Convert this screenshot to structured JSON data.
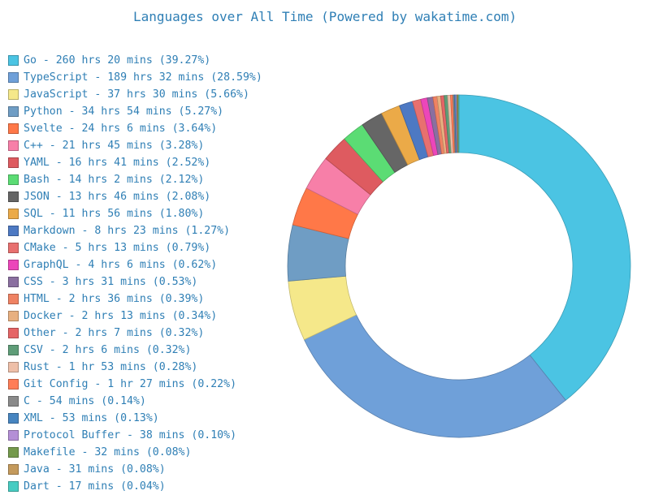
{
  "chart_data": {
    "type": "pie",
    "title": "Languages over All Time (Powered by wakatime.com)",
    "legend_placement": "left",
    "slices": [
      {
        "label": "Go - 260 hrs 20 mins (39.27%)",
        "value": 39.27,
        "color": "#4bc4e3"
      },
      {
        "label": "TypeScript - 189 hrs 32 mins (28.59%)",
        "value": 28.59,
        "color": "#6fa0d9"
      },
      {
        "label": "JavaScript - 37 hrs 30 mins (5.66%)",
        "value": 5.66,
        "color": "#f5e88a"
      },
      {
        "label": "Python - 34 hrs 54 mins (5.27%)",
        "value": 5.27,
        "color": "#6f9dc4"
      },
      {
        "label": "Svelte - 24 hrs 6 mins (3.64%)",
        "value": 3.64,
        "color": "#ff7848"
      },
      {
        "label": "C++ - 21 hrs 45 mins (3.28%)",
        "value": 3.28,
        "color": "#f77fa8"
      },
      {
        "label": "YAML - 16 hrs 41 mins (2.52%)",
        "value": 2.52,
        "color": "#de5b60"
      },
      {
        "label": "Bash - 14 hrs 2 mins (2.12%)",
        "value": 2.12,
        "color": "#5bdc74"
      },
      {
        "label": "JSON - 13 hrs 46 mins (2.08%)",
        "value": 2.08,
        "color": "#666666"
      },
      {
        "label": "SQL - 11 hrs 56 mins (1.80%)",
        "value": 1.8,
        "color": "#ebaa48"
      },
      {
        "label": "Markdown - 8 hrs 23 mins (1.27%)",
        "value": 1.27,
        "color": "#4d79c3"
      },
      {
        "label": "CMake - 5 hrs 13 mins (0.79%)",
        "value": 0.79,
        "color": "#e8706f"
      },
      {
        "label": "GraphQL - 4 hrs 6 mins (0.62%)",
        "value": 0.62,
        "color": "#ec46ba"
      },
      {
        "label": "CSS - 3 hrs 31 mins (0.53%)",
        "value": 0.53,
        "color": "#8a6fa0"
      },
      {
        "label": "HTML - 2 hrs 36 mins (0.39%)",
        "value": 0.39,
        "color": "#ef8263"
      },
      {
        "label": "Docker - 2 hrs 13 mins (0.34%)",
        "value": 0.34,
        "color": "#e8b080"
      },
      {
        "label": "Other - 2 hrs 7 mins (0.32%)",
        "value": 0.32,
        "color": "#e56566"
      },
      {
        "label": "CSV - 2 hrs 6 mins (0.32%)",
        "value": 0.32,
        "color": "#5f9d78"
      },
      {
        "label": "Rust - 1 hr 53 mins (0.28%)",
        "value": 0.28,
        "color": "#eebfa8"
      },
      {
        "label": "Git Config - 1 hr 27 mins (0.22%)",
        "value": 0.22,
        "color": "#ff7d57"
      },
      {
        "label": "C - 54 mins (0.14%)",
        "value": 0.14,
        "color": "#8a8a8a"
      },
      {
        "label": "XML - 53 mins (0.13%)",
        "value": 0.13,
        "color": "#4785c0"
      },
      {
        "label": "Protocol Buffer - 38 mins (0.10%)",
        "value": 0.1,
        "color": "#b48fd6"
      },
      {
        "label": "Makefile - 32 mins (0.08%)",
        "value": 0.08,
        "color": "#74994c"
      },
      {
        "label": "Java - 31 mins (0.08%)",
        "value": 0.08,
        "color": "#c49a5c"
      },
      {
        "label": "Dart - 17 mins (0.04%)",
        "value": 0.04,
        "color": "#47ccc2"
      }
    ]
  }
}
